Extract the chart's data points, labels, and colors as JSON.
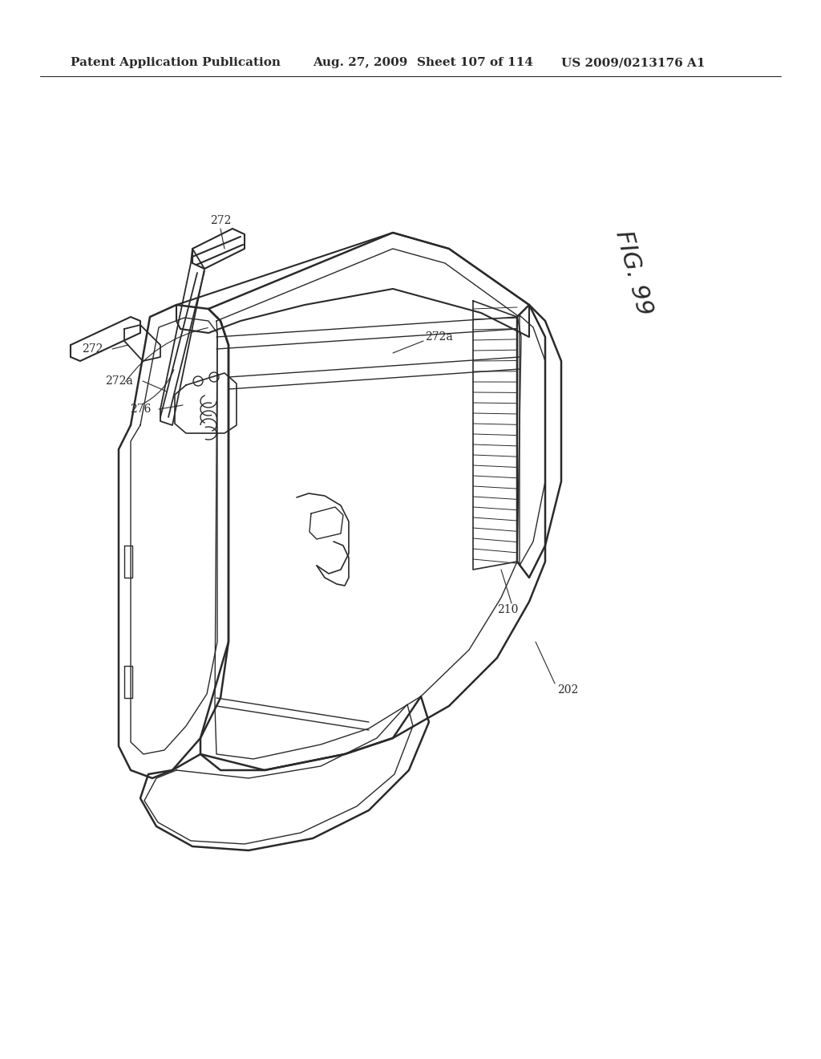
{
  "background_color": "#ffffff",
  "header_text": "Patent Application Publication",
  "header_date": "Aug. 27, 2009",
  "header_sheet": "Sheet 107 of 114",
  "header_patent": "US 2009/0213176 A1",
  "fig_label": "FIG. 99",
  "ref_numbers": [
    "272",
    "272",
    "272a",
    "276",
    "272a",
    "210",
    "202"
  ],
  "line_color": "#2a2a2a",
  "line_width": 1.2,
  "header_fontsize": 11,
  "fig_label_fontsize": 22,
  "ref_fontsize": 10
}
